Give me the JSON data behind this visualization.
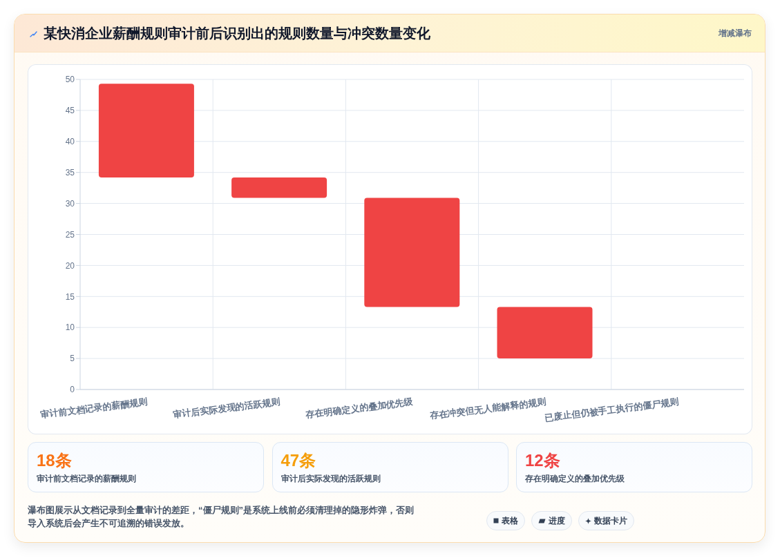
{
  "chart_data": [
    {
      "type": "bar",
      "title": "某快消企业薪酬规则审计前后识别出的规则数量与冲突数量变化",
      "subtitle": "增减瀑布",
      "categories": [
        "审计前文档记录的薪酬规则",
        "审计后实际发现的活跃规则",
        "存在明确定义的叠加优先级",
        "存在冲突但无人能解释的规则",
        "已废止但仍被手工执行的僵尸规则"
      ],
      "values": [
        15.1,
        3.3,
        17.6,
        8.3,
        null
      ],
      "base": [
        34.2,
        30.9,
        13.3,
        5,
        null
      ],
      "color": "#ef4444",
      "ylim": [
        0,
        50
      ],
      "yticks": [
        0,
        5,
        10,
        15,
        20,
        25,
        30,
        35,
        40,
        45,
        50
      ],
      "grid": true,
      "annotations": [
        "瀑布图展示从文档记录到全量审计的差距，“僵尸规则”是系统上线前必须清理掉的隐形炸弹，否则导入系统后会产生不可追溯的错误发放。",
        "表格",
        "进度",
        "数据卡片"
      ]
    },
    {
      "type": "other",
      "annotations": [
        "18条",
        "审计前文档记录的薪酬规则",
        "47条",
        "审计后实际发现的活跃规则",
        "12条",
        "存在明确定义的叠加优先级"
      ]
    }
  ]
}
